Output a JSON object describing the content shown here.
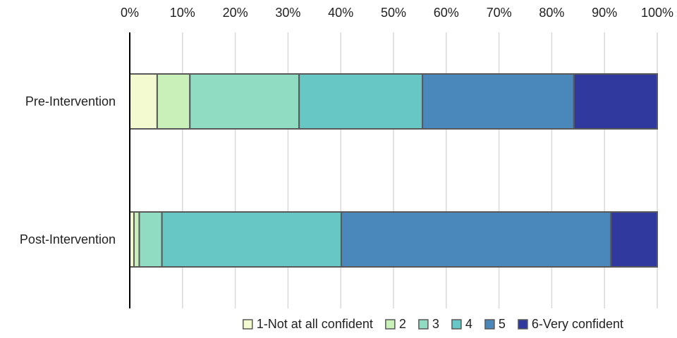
{
  "chart_data": {
    "type": "bar",
    "orientation": "horizontal",
    "stacked": "percent",
    "categories": [
      "Pre-Intervention",
      "Post-Intervention"
    ],
    "x_ticks": [
      "0%",
      "10%",
      "20%",
      "30%",
      "40%",
      "50%",
      "60%",
      "70%",
      "80%",
      "90%",
      "100%"
    ],
    "xlim": [
      0,
      100
    ],
    "grid": true,
    "legend_position": "bottom",
    "series": [
      {
        "name": "1-Not at all confident",
        "color": "#f3fad0",
        "values": [
          5.2,
          0.8
        ]
      },
      {
        "name": "2",
        "color": "#c9f0b8",
        "values": [
          6.2,
          1.0
        ]
      },
      {
        "name": "3",
        "color": "#8fdcc2",
        "values": [
          20.7,
          4.3
        ]
      },
      {
        "name": "4",
        "color": "#66c7c5",
        "values": [
          23.4,
          34.0
        ]
      },
      {
        "name": "5",
        "color": "#4a88bb",
        "values": [
          28.7,
          51.1
        ]
      },
      {
        "name": "6-Very confident",
        "color": "#303a9e",
        "values": [
          15.8,
          8.8
        ]
      }
    ]
  }
}
